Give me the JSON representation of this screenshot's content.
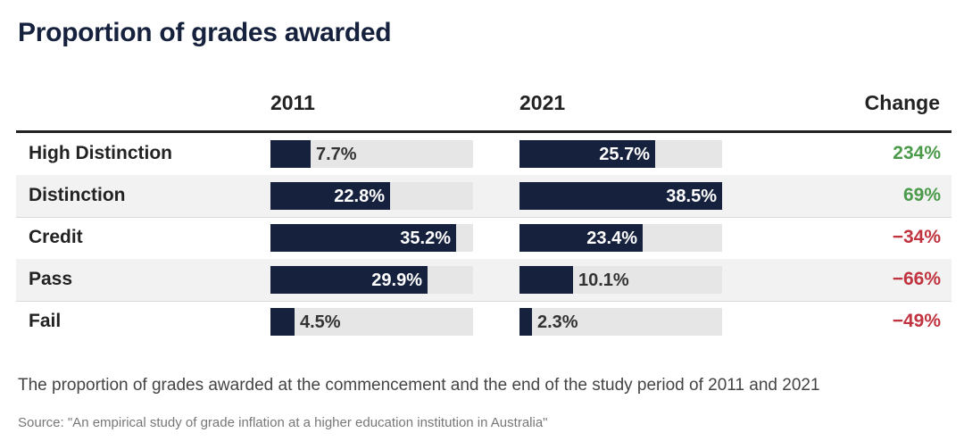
{
  "title": "Proportion of grades awarded",
  "columns": {
    "year_a": "2011",
    "year_b": "2021",
    "change": "Change"
  },
  "colors": {
    "bar": "#16213e",
    "track": "#e6e6e6",
    "positive": "#4a9a4a",
    "negative": "#c0333f"
  },
  "chart_data": {
    "type": "bar",
    "title": "Proportion of grades awarded",
    "categories": [
      "High Distinction",
      "Distinction",
      "Credit",
      "Pass",
      "Fail"
    ],
    "series": [
      {
        "name": "2011",
        "values": [
          7.7,
          22.8,
          35.2,
          29.9,
          4.5
        ],
        "labels": [
          "7.7%",
          "22.8%",
          "35.2%",
          "29.9%",
          "4.5%"
        ]
      },
      {
        "name": "2021",
        "values": [
          25.7,
          38.5,
          23.4,
          10.1,
          2.3
        ],
        "labels": [
          "25.7%",
          "38.5%",
          "23.4%",
          "10.1%",
          "2.3%"
        ]
      }
    ],
    "change": [
      234,
      69,
      -34,
      -66,
      -49
    ],
    "change_labels": [
      "234%",
      "69%",
      "−34%",
      "−66%",
      "−49%"
    ],
    "xlim": [
      0,
      38.5
    ],
    "unit": "%"
  },
  "caption": "The proportion of grades awarded at the commencement and the end of the study period of 2011 and 2021",
  "source": "Source: \"An empirical study of grade inflation at a higher education institution in Australia\""
}
